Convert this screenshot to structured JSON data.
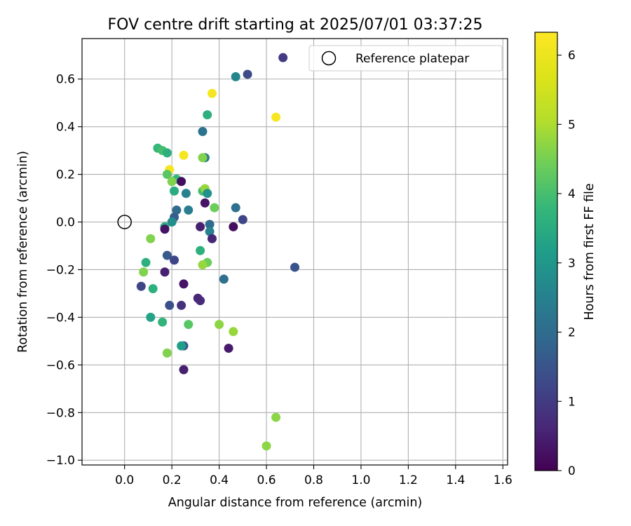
{
  "chart_data": {
    "type": "scatter",
    "title": "FOV centre drift starting at 2025/07/01 03:37:25",
    "xlabel": "Angular distance from reference (arcmin)",
    "ylabel": "Rotation from reference (arcmin)",
    "xlim": [
      -0.18,
      1.62
    ],
    "ylim": [
      -1.02,
      0.77
    ],
    "xticks": [
      0.0,
      0.2,
      0.4,
      0.6,
      0.8,
      1.0,
      1.2,
      1.4,
      1.6
    ],
    "xtick_labels": [
      "0.0",
      "0.2",
      "0.4",
      "0.6",
      "0.8",
      "1.0",
      "1.2",
      "1.4",
      "1.6"
    ],
    "yticks": [
      0.6,
      0.4,
      0.2,
      0.0,
      -0.2,
      -0.4,
      -0.6,
      -0.8,
      -1.0
    ],
    "ytick_labels": [
      "0.6",
      "0.4",
      "0.2",
      "0.0",
      "−0.2",
      "−0.4",
      "−0.6",
      "−0.8",
      "−1.0"
    ],
    "grid": true,
    "legend": {
      "placement": "top-right",
      "label": "Reference platepar"
    },
    "reference_point": {
      "x": 0.0,
      "y": 0.0
    },
    "colorbar": {
      "label": "Hours from first FF file",
      "range": [
        0,
        6.33
      ],
      "ticks": [
        0,
        1,
        2,
        3,
        4,
        5,
        6
      ],
      "tick_labels": [
        "0",
        "1",
        "2",
        "3",
        "4",
        "5",
        "6"
      ],
      "colormap": "viridis"
    },
    "points": [
      {
        "x": 0.67,
        "y": 0.69,
        "hours": 1.0
      },
      {
        "x": 0.47,
        "y": 0.61,
        "hours": 2.6
      },
      {
        "x": 0.52,
        "y": 0.62,
        "hours": 1.3
      },
      {
        "x": 0.37,
        "y": 0.54,
        "hours": 6.2
      },
      {
        "x": 0.35,
        "y": 0.45,
        "hours": 3.6
      },
      {
        "x": 0.64,
        "y": 0.44,
        "hours": 6.2
      },
      {
        "x": 0.33,
        "y": 0.38,
        "hours": 2.2
      },
      {
        "x": 0.14,
        "y": 0.31,
        "hours": 3.8
      },
      {
        "x": 0.16,
        "y": 0.3,
        "hours": 4.0
      },
      {
        "x": 0.18,
        "y": 0.29,
        "hours": 3.6
      },
      {
        "x": 0.25,
        "y": 0.28,
        "hours": 6.2
      },
      {
        "x": 0.34,
        "y": 0.27,
        "hours": 2.3
      },
      {
        "x": 0.33,
        "y": 0.27,
        "hours": 4.6
      },
      {
        "x": 0.19,
        "y": 0.22,
        "hours": 6.2
      },
      {
        "x": 0.18,
        "y": 0.2,
        "hours": 4.2
      },
      {
        "x": 0.22,
        "y": 0.18,
        "hours": 3.8
      },
      {
        "x": 0.2,
        "y": 0.17,
        "hours": 4.6
      },
      {
        "x": 0.24,
        "y": 0.17,
        "hours": 0.2
      },
      {
        "x": 0.21,
        "y": 0.13,
        "hours": 3.5
      },
      {
        "x": 0.26,
        "y": 0.12,
        "hours": 2.5
      },
      {
        "x": 0.33,
        "y": 0.13,
        "hours": 4.0
      },
      {
        "x": 0.34,
        "y": 0.14,
        "hours": 4.8
      },
      {
        "x": 0.35,
        "y": 0.12,
        "hours": 2.9
      },
      {
        "x": 0.34,
        "y": 0.08,
        "hours": 0.3
      },
      {
        "x": 0.38,
        "y": 0.06,
        "hours": 4.4
      },
      {
        "x": 0.47,
        "y": 0.06,
        "hours": 2.1
      },
      {
        "x": 0.22,
        "y": 0.05,
        "hours": 2.0
      },
      {
        "x": 0.27,
        "y": 0.05,
        "hours": 2.4
      },
      {
        "x": 0.21,
        "y": 0.02,
        "hours": 1.7
      },
      {
        "x": 0.5,
        "y": 0.01,
        "hours": 1.2
      },
      {
        "x": 0.2,
        "y": 0.0,
        "hours": 2.8
      },
      {
        "x": 0.17,
        "y": -0.02,
        "hours": 3.5
      },
      {
        "x": 0.17,
        "y": -0.03,
        "hours": 0.3
      },
      {
        "x": 0.32,
        "y": -0.02,
        "hours": 0.5
      },
      {
        "x": 0.36,
        "y": -0.01,
        "hours": 2.0
      },
      {
        "x": 0.36,
        "y": -0.04,
        "hours": 2.5
      },
      {
        "x": 0.46,
        "y": -0.02,
        "hours": 0.2
      },
      {
        "x": 0.37,
        "y": -0.07,
        "hours": 0.6
      },
      {
        "x": 0.11,
        "y": -0.07,
        "hours": 4.6
      },
      {
        "x": 0.32,
        "y": -0.12,
        "hours": 3.6
      },
      {
        "x": 0.18,
        "y": -0.14,
        "hours": 1.6
      },
      {
        "x": 0.21,
        "y": -0.16,
        "hours": 1.2
      },
      {
        "x": 0.09,
        "y": -0.17,
        "hours": 3.6
      },
      {
        "x": 0.35,
        "y": -0.17,
        "hours": 4.4
      },
      {
        "x": 0.33,
        "y": -0.18,
        "hours": 4.8
      },
      {
        "x": 0.72,
        "y": -0.19,
        "hours": 1.5
      },
      {
        "x": 0.08,
        "y": -0.21,
        "hours": 4.6
      },
      {
        "x": 0.17,
        "y": -0.21,
        "hours": 0.5
      },
      {
        "x": 0.42,
        "y": -0.24,
        "hours": 2.1
      },
      {
        "x": 0.25,
        "y": -0.26,
        "hours": 0.3
      },
      {
        "x": 0.07,
        "y": -0.27,
        "hours": 1.2
      },
      {
        "x": 0.12,
        "y": -0.28,
        "hours": 3.6
      },
      {
        "x": 0.31,
        "y": -0.32,
        "hours": 0.6
      },
      {
        "x": 0.32,
        "y": -0.33,
        "hours": 0.7
      },
      {
        "x": 0.19,
        "y": -0.35,
        "hours": 1.4
      },
      {
        "x": 0.24,
        "y": -0.35,
        "hours": 0.8
      },
      {
        "x": 0.11,
        "y": -0.4,
        "hours": 3.3
      },
      {
        "x": 0.16,
        "y": -0.42,
        "hours": 3.7
      },
      {
        "x": 0.27,
        "y": -0.43,
        "hours": 4.2
      },
      {
        "x": 0.4,
        "y": -0.43,
        "hours": 4.7
      },
      {
        "x": 0.46,
        "y": -0.46,
        "hours": 4.8
      },
      {
        "x": 0.25,
        "y": -0.52,
        "hours": 1.5
      },
      {
        "x": 0.24,
        "y": -0.52,
        "hours": 3.2
      },
      {
        "x": 0.44,
        "y": -0.53,
        "hours": 0.4
      },
      {
        "x": 0.18,
        "y": -0.55,
        "hours": 4.6
      },
      {
        "x": 0.25,
        "y": -0.62,
        "hours": 0.5
      },
      {
        "x": 0.64,
        "y": -0.82,
        "hours": 4.7
      },
      {
        "x": 0.6,
        "y": -0.94,
        "hours": 4.7
      }
    ]
  }
}
